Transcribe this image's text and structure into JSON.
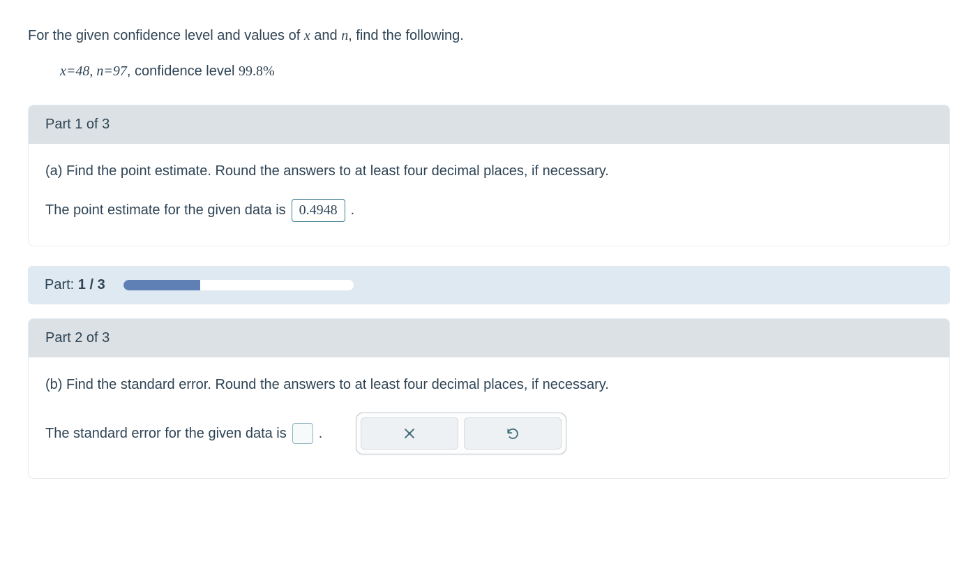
{
  "intro": {
    "prefix": "For the given confidence level and values of ",
    "var1": "x",
    "mid1": " and ",
    "var2": "n",
    "suffix": ", find the following."
  },
  "given": {
    "expr": "x=48, n=97",
    "text": ", confidence level ",
    "level": "99.8%"
  },
  "part1": {
    "header": "Part 1 of 3",
    "prompt": "(a) Find the point estimate. Round the answers to at least four decimal places, if necessary.",
    "answer_prefix": "The point estimate for the given data is ",
    "answer_value": "0.4948",
    "answer_suffix": "."
  },
  "progress": {
    "label_prefix": "Part: ",
    "label_value": "1 / 3",
    "percent": 33.3,
    "bar_bg": "#ffffff",
    "fill_color": "#5e80b4"
  },
  "part2": {
    "header": "Part 2 of 3",
    "prompt": "(b) Find the standard error. Round the answers to at least four decimal places, if necessary.",
    "answer_prefix": "The standard error for the given data is ",
    "answer_suffix": "."
  },
  "colors": {
    "text": "#2e4354",
    "header_bg": "#dbe1e5",
    "progress_bg": "#dfe9f2",
    "box_border": "#3a7b8c",
    "icon": "#3f6b78"
  }
}
